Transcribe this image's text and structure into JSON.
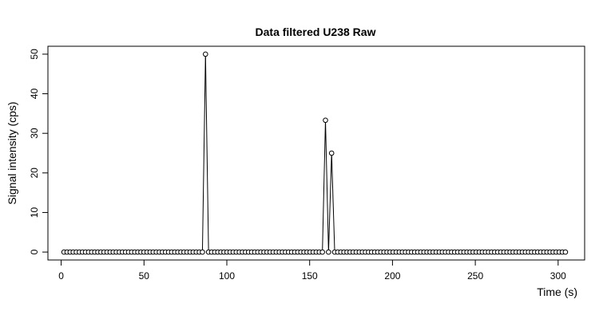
{
  "chart_data": {
    "type": "line",
    "title": "Data filtered U238 Raw",
    "xlabel": "Time (s)",
    "ylabel": "Signal intensity (cps)",
    "xlim": [
      -8,
      316
    ],
    "ylim": [
      -2,
      52
    ],
    "xticks": [
      0,
      50,
      100,
      150,
      200,
      250,
      300
    ],
    "yticks": [
      0,
      10,
      20,
      30,
      40,
      50
    ],
    "x_start": 1.7,
    "x_step": 1.857,
    "n_points": 164,
    "spikes": [
      {
        "index": 46,
        "y": 50
      },
      {
        "index": 85,
        "y": 33.3
      },
      {
        "index": 87,
        "y": 25
      }
    ],
    "baseline": 0,
    "marker": "open-circle",
    "grid": false,
    "legend": false
  }
}
